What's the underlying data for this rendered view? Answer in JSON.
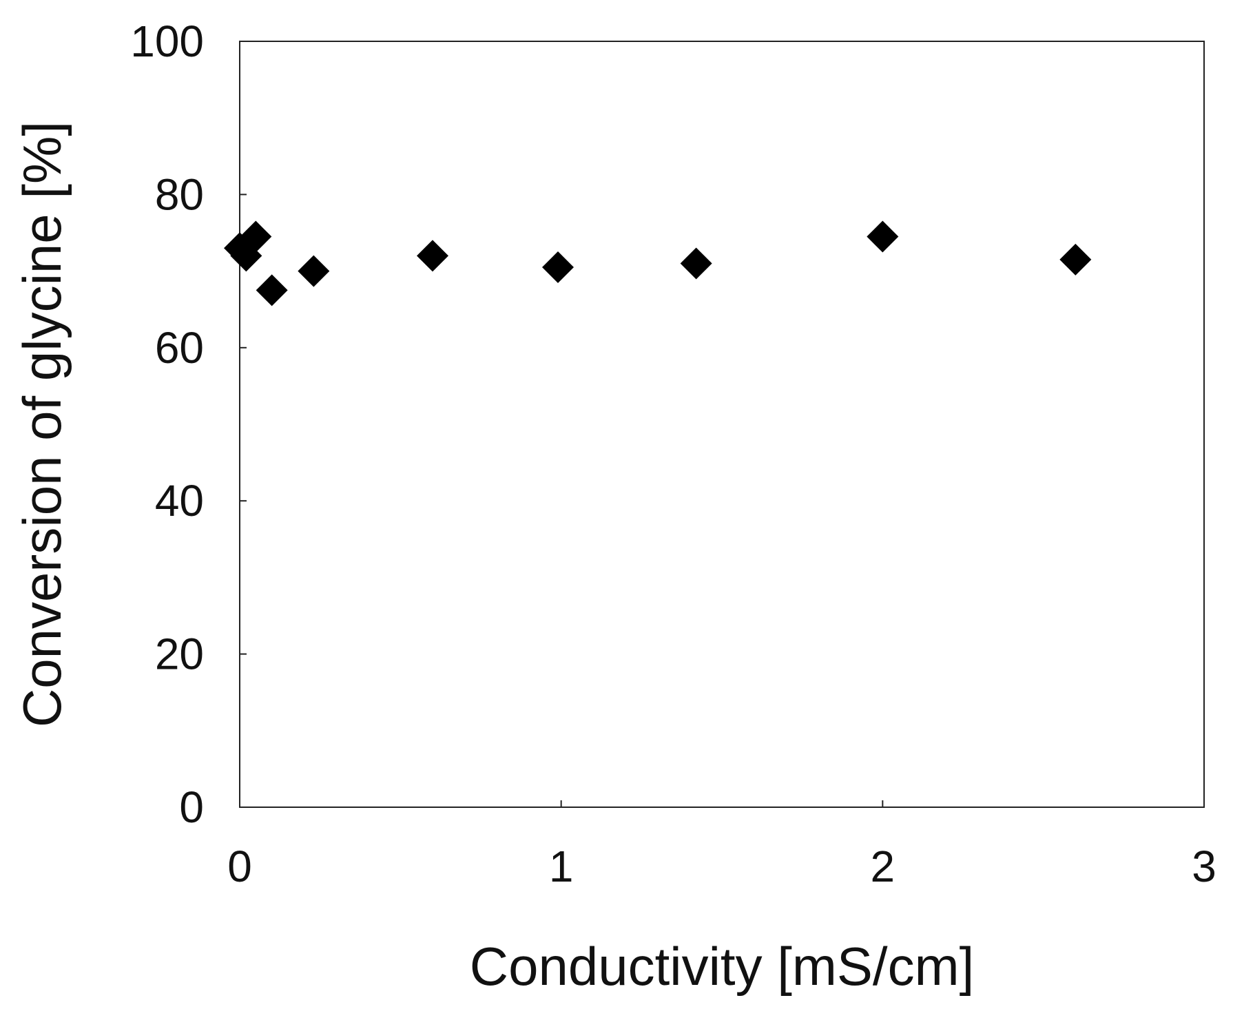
{
  "chart_data": {
    "type": "scatter",
    "xlabel": "Conductivity [mS/cm]",
    "ylabel": "Conversion of glycine [%]",
    "xlim": [
      0,
      3
    ],
    "ylim": [
      0,
      100
    ],
    "xticks": [
      "0",
      "1",
      "2",
      "3"
    ],
    "yticks": [
      "0",
      "20",
      "40",
      "60",
      "80",
      "100"
    ],
    "grid": false,
    "marker": "diamond",
    "marker_color": "#000000",
    "series": [
      {
        "x": [
          0.0,
          0.02,
          0.05,
          0.1,
          0.23,
          0.6,
          0.99,
          1.42,
          2.0,
          2.6
        ],
        "y": [
          73.0,
          72.0,
          74.5,
          67.5,
          70.0,
          72.0,
          70.5,
          71.0,
          74.5,
          71.5
        ]
      }
    ]
  }
}
